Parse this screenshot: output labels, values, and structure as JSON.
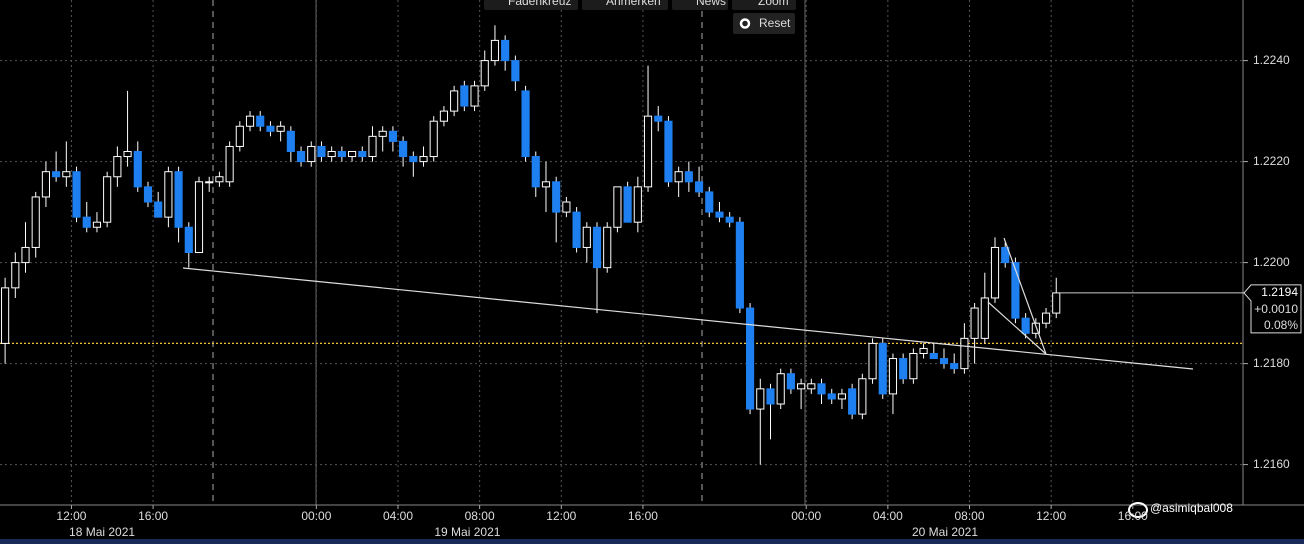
{
  "toolbar": {
    "buttons": [
      "Fadenkreuz",
      "Anmerken",
      "News",
      "Zoom"
    ],
    "reset": "Reset"
  },
  "chart_data": {
    "type": "candlestick",
    "up_color": "#000000",
    "up_border": "#ffffff",
    "down_color": "#1e80f0",
    "wick_color": "#ffffff",
    "xlim": [
      8.5,
      69.4
    ],
    "ylim": [
      1.2152,
      1.2252
    ],
    "grid": true,
    "xticks": [
      {
        "value": 12,
        "label": "12:00"
      },
      {
        "value": 16,
        "label": "16:00"
      },
      {
        "value": 24,
        "label": "00:00"
      },
      {
        "value": 28,
        "label": "04:00"
      },
      {
        "value": 32,
        "label": "08:00"
      },
      {
        "value": 36,
        "label": "12:00"
      },
      {
        "value": 40,
        "label": "16:00"
      },
      {
        "value": 48,
        "label": "00:00"
      },
      {
        "value": 52,
        "label": "04:00"
      },
      {
        "value": 56,
        "label": "08:00"
      },
      {
        "value": 60,
        "label": "12:00"
      },
      {
        "value": 64,
        "label": "16:00"
      }
    ],
    "date_labels": [
      {
        "value": 13.5,
        "label": "18 Mai 2021"
      },
      {
        "value": 31.4,
        "label": "19 Mai 2021"
      },
      {
        "value": 54.8,
        "label": "20 Mai 2021"
      }
    ],
    "yticks": [
      {
        "value": 1.216,
        "label": "1.2160"
      },
      {
        "value": 1.218,
        "label": "1.2180"
      },
      {
        "value": 1.22,
        "label": "1.2200"
      },
      {
        "value": 1.222,
        "label": "1.2220"
      },
      {
        "value": 1.224,
        "label": "1.2240"
      }
    ],
    "reference_line": 1.2184,
    "reference_color": "#f0c040",
    "last": {
      "value": 1.2194,
      "change": {
        "value": 0.001,
        "label": "+0.0010"
      },
      "change_pct": {
        "value": 0.08,
        "label": "0.08%"
      }
    },
    "x": [
      8.5,
      9,
      9.5,
      10,
      10.5,
      11,
      11.5,
      12,
      12.5,
      13,
      13.5,
      14,
      14.5,
      15,
      15.5,
      16,
      16.5,
      17,
      17.5,
      18,
      18.5,
      19,
      19.5,
      20,
      20.5,
      21,
      21.5,
      22,
      22.5,
      23,
      23.5,
      24,
      24.5,
      25,
      25.5,
      26,
      26.5,
      27,
      27.5,
      28,
      28.5,
      29,
      29.5,
      30,
      30.5,
      31,
      31.5,
      32,
      32.5,
      33,
      33.5,
      34,
      34.5,
      35,
      35.5,
      36,
      36.5,
      37,
      37.5,
      38,
      38.5,
      39,
      39.5,
      40,
      40.5,
      41,
      41.5,
      42,
      42.5,
      43,
      43.5,
      44,
      44.5,
      45,
      45.5,
      46,
      46.5,
      47,
      47.5,
      48,
      48.5,
      49,
      49.5,
      50,
      50.5,
      51,
      51.5,
      52,
      52.5,
      53,
      53.5,
      54,
      54.5,
      55,
      55.5,
      56,
      56.5,
      57,
      57.5,
      58,
      58.5,
      59,
      59.5,
      60
    ],
    "ohlc": [
      [
        1.2184,
        1.2197,
        1.218,
        1.2195
      ],
      [
        1.2195,
        1.2202,
        1.2193,
        1.22
      ],
      [
        1.22,
        1.2208,
        1.2198,
        1.2203
      ],
      [
        1.2203,
        1.2214,
        1.2201,
        1.2213
      ],
      [
        1.2213,
        1.222,
        1.2211,
        1.2218
      ],
      [
        1.2218,
        1.2222,
        1.2216,
        1.2217
      ],
      [
        1.2217,
        1.2224,
        1.2215,
        1.2218
      ],
      [
        1.2218,
        1.2219,
        1.2208,
        1.2209
      ],
      [
        1.2209,
        1.2212,
        1.2206,
        1.2207
      ],
      [
        1.2207,
        1.221,
        1.2206,
        1.2208
      ],
      [
        1.2208,
        1.2218,
        1.2207,
        1.2217
      ],
      [
        1.2217,
        1.2223,
        1.2215,
        1.2221
      ],
      [
        1.2221,
        1.2234,
        1.2219,
        1.2222
      ],
      [
        1.2222,
        1.2224,
        1.2214,
        1.2215
      ],
      [
        1.2215,
        1.2216,
        1.2211,
        1.2212
      ],
      [
        1.2212,
        1.2214,
        1.2209,
        1.2209
      ],
      [
        1.2209,
        1.2219,
        1.2207,
        1.2218
      ],
      [
        1.2218,
        1.2219,
        1.2204,
        1.2207
      ],
      [
        1.2207,
        1.2208,
        1.2199,
        1.2202
      ],
      [
        1.2202,
        1.2217,
        1.2202,
        1.2216
      ],
      [
        1.2216,
        1.2217,
        1.2214,
        1.2216
      ],
      [
        1.2216,
        1.2218,
        1.2215,
        1.2217
      ],
      [
        1.2216,
        1.2224,
        1.2215,
        1.2223
      ],
      [
        1.2223,
        1.2228,
        1.2222,
        1.2227
      ],
      [
        1.2227,
        1.223,
        1.2226,
        1.2229
      ],
      [
        1.2229,
        1.223,
        1.2226,
        1.2227
      ],
      [
        1.2227,
        1.2228,
        1.2225,
        1.2226
      ],
      [
        1.2226,
        1.2228,
        1.2224,
        1.2227
      ],
      [
        1.2226,
        1.2227,
        1.222,
        1.2222
      ],
      [
        1.2222,
        1.2223,
        1.2219,
        1.222
      ],
      [
        1.222,
        1.2224,
        1.2219,
        1.2223
      ],
      [
        1.2223,
        1.2224,
        1.222,
        1.2221
      ],
      [
        1.2221,
        1.2223,
        1.222,
        1.2222
      ],
      [
        1.2222,
        1.2223,
        1.222,
        1.2221
      ],
      [
        1.2221,
        1.2222,
        1.222,
        1.2222
      ],
      [
        1.2222,
        1.2223,
        1.222,
        1.2221
      ],
      [
        1.2221,
        1.2227,
        1.222,
        1.2225
      ],
      [
        1.2225,
        1.2227,
        1.2222,
        1.2226
      ],
      [
        1.2226,
        1.2227,
        1.2222,
        1.2224
      ],
      [
        1.2224,
        1.2225,
        1.2219,
        1.2221
      ],
      [
        1.2221,
        1.2222,
        1.2217,
        1.222
      ],
      [
        1.222,
        1.2223,
        1.2219,
        1.2221
      ],
      [
        1.2221,
        1.2229,
        1.222,
        1.2228
      ],
      [
        1.2228,
        1.2231,
        1.2227,
        1.223
      ],
      [
        1.223,
        1.2235,
        1.2229,
        1.2234
      ],
      [
        1.2235,
        1.2236,
        1.223,
        1.2231
      ],
      [
        1.2231,
        1.2236,
        1.223,
        1.2235
      ],
      [
        1.2235,
        1.2242,
        1.2234,
        1.224
      ],
      [
        1.224,
        1.2247,
        1.2239,
        1.2244
      ],
      [
        1.2244,
        1.2245,
        1.2238,
        1.224
      ],
      [
        1.224,
        1.2241,
        1.2234,
        1.2236
      ],
      [
        1.2234,
        1.2235,
        1.222,
        1.2221
      ],
      [
        1.2221,
        1.2222,
        1.2213,
        1.2215
      ],
      [
        1.2215,
        1.222,
        1.221,
        1.2216
      ],
      [
        1.2216,
        1.2217,
        1.2204,
        1.221
      ],
      [
        1.221,
        1.2213,
        1.2209,
        1.2212
      ],
      [
        1.221,
        1.2211,
        1.2202,
        1.2203
      ],
      [
        1.2203,
        1.2208,
        1.22,
        1.2207
      ],
      [
        1.2207,
        1.2208,
        1.219,
        1.2199
      ],
      [
        1.2199,
        1.2208,
        1.2198,
        1.2207
      ],
      [
        1.2207,
        1.2215,
        1.2206,
        1.2215
      ],
      [
        1.2215,
        1.2216,
        1.2208,
        1.2208
      ],
      [
        1.2208,
        1.2217,
        1.2206,
        1.2215
      ],
      [
        1.2215,
        1.2239,
        1.2214,
        1.2229
      ],
      [
        1.2229,
        1.2231,
        1.2226,
        1.2228
      ],
      [
        1.2228,
        1.2229,
        1.2215,
        1.2216
      ],
      [
        1.2216,
        1.2219,
        1.2213,
        1.2218
      ],
      [
        1.2218,
        1.222,
        1.2214,
        1.2216
      ],
      [
        1.2216,
        1.2219,
        1.2213,
        1.2214
      ],
      [
        1.2214,
        1.2215,
        1.2209,
        1.221
      ],
      [
        1.221,
        1.2212,
        1.2208,
        1.2209
      ],
      [
        1.2209,
        1.221,
        1.2207,
        1.2208
      ],
      [
        1.2208,
        1.2209,
        1.219,
        1.2191
      ],
      [
        1.2191,
        1.2192,
        1.217,
        1.2171
      ],
      [
        1.2171,
        1.2177,
        1.216,
        1.2175
      ],
      [
        1.2175,
        1.2176,
        1.2165,
        1.2172
      ],
      [
        1.2172,
        1.2179,
        1.2171,
        1.2178
      ],
      [
        1.2178,
        1.2179,
        1.2174,
        1.2175
      ],
      [
        1.2175,
        1.2177,
        1.2171,
        1.2176
      ],
      [
        1.2175,
        1.2177,
        1.2174,
        1.2176
      ],
      [
        1.2176,
        1.2177,
        1.2172,
        1.2174
      ],
      [
        1.2174,
        1.2175,
        1.2172,
        1.2173
      ],
      [
        1.2173,
        1.2175,
        1.2171,
        1.2174
      ],
      [
        1.2175,
        1.2176,
        1.2169,
        1.217
      ],
      [
        1.217,
        1.2178,
        1.2169,
        1.2177
      ],
      [
        1.2177,
        1.2185,
        1.2176,
        1.2184
      ],
      [
        1.2184,
        1.2185,
        1.2173,
        1.2174
      ],
      [
        1.2174,
        1.2182,
        1.217,
        1.2181
      ],
      [
        1.2181,
        1.2182,
        1.2176,
        1.2177
      ],
      [
        1.2177,
        1.2183,
        1.2176,
        1.2182
      ],
      [
        1.2182,
        1.2184,
        1.2181,
        1.2183
      ],
      [
        1.2182,
        1.2184,
        1.2181,
        1.2181
      ],
      [
        1.2181,
        1.2183,
        1.2179,
        1.218
      ],
      [
        1.218,
        1.2182,
        1.2178,
        1.2179
      ],
      [
        1.2179,
        1.2188,
        1.2178,
        1.2185
      ],
      [
        1.2185,
        1.2192,
        1.218,
        1.2191
      ],
      [
        1.2185,
        1.2198,
        1.2184,
        1.2193
      ],
      [
        1.2193,
        1.2205,
        1.2192,
        1.2203
      ],
      [
        1.2203,
        1.2204,
        1.2199,
        1.22
      ],
      [
        1.22,
        1.2201,
        1.2188,
        1.2189
      ],
      [
        1.2189,
        1.219,
        1.2185,
        1.2186
      ],
      [
        1.2186,
        1.2189,
        1.2185,
        1.2188
      ],
      [
        1.2188,
        1.2191,
        1.2187,
        1.219
      ],
      [
        1.219,
        1.2197,
        1.2189,
        1.2194
      ]
    ]
  },
  "watermark": "@asimiqbal008"
}
